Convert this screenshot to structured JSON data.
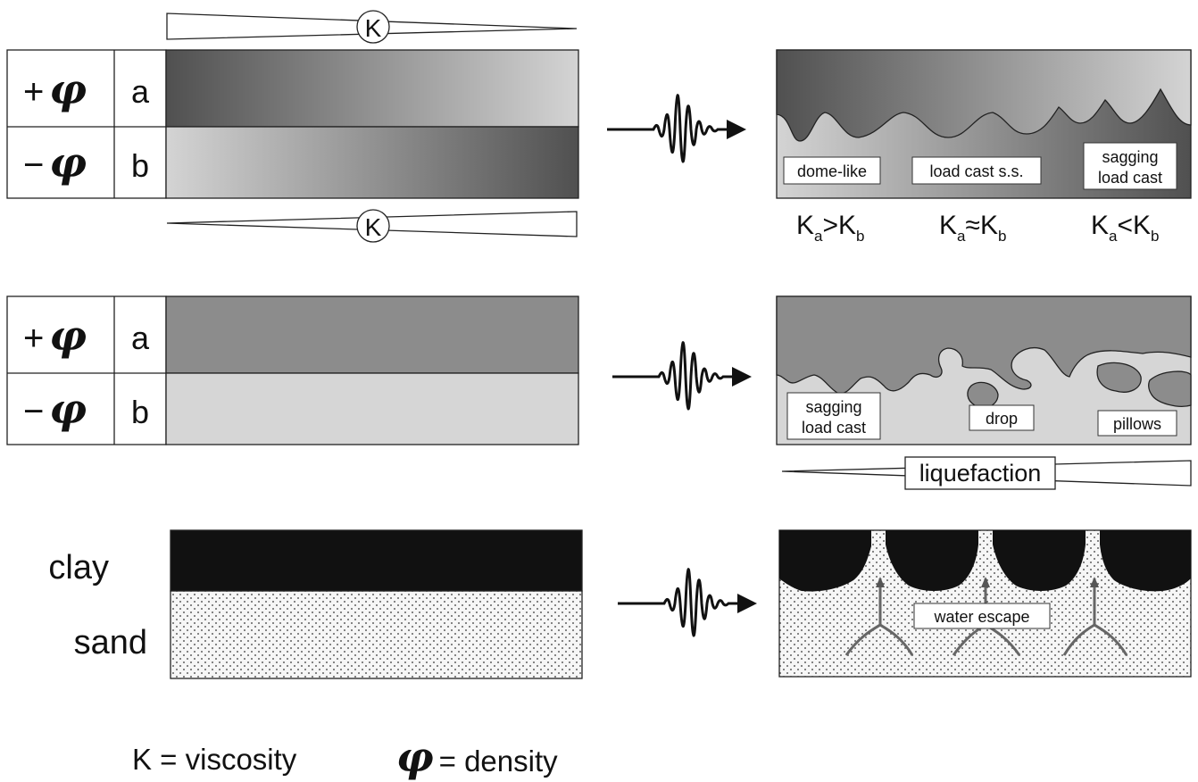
{
  "row1": {
    "top_wedge_label": "K",
    "bottom_wedge_label": "K",
    "layer_a_density": "+",
    "layer_b_density": "−",
    "phi_symbol": "φ",
    "layer_a_name": "a",
    "layer_b_name": "b",
    "result_labels": [
      "dome-like",
      "load cast s.s.",
      "sagging",
      "load cast"
    ],
    "relations": [
      {
        "left": "K",
        "left_sub": "a",
        "op": ">",
        "right": "K",
        "right_sub": "b"
      },
      {
        "left": "K",
        "left_sub": "a",
        "op": "≈",
        "right": "K",
        "right_sub": "b"
      },
      {
        "left": "K",
        "left_sub": "a",
        "op": "<",
        "right": "K",
        "right_sub": "b"
      }
    ]
  },
  "row2": {
    "layer_a_density": "+",
    "layer_b_density": "−",
    "phi_symbol": "φ",
    "layer_a_name": "a",
    "layer_b_name": "b",
    "result_labels": [
      "sagging",
      "load cast",
      "drop",
      "pillows"
    ],
    "wedge_label": "liquefaction"
  },
  "row3": {
    "top_layer": "clay",
    "bottom_layer": "sand",
    "result_label": "water escape"
  },
  "legend": {
    "viscosity_text": "K = viscosity",
    "phi_symbol": "φ",
    "density_text": "= density"
  },
  "colors": {
    "clay": "#111111",
    "sand": "#f4f4f4",
    "arrow_gray": "#666666",
    "border": "#222222"
  }
}
